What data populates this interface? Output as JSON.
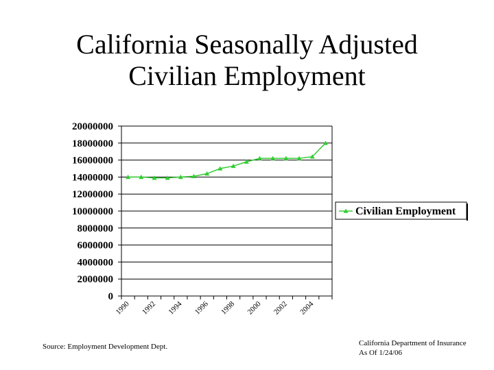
{
  "title_lines": [
    "California Seasonally Adjusted",
    "Civilian Employment"
  ],
  "source_note": "Source: Employment Development Dept.",
  "footer": {
    "org": "California Department of Insurance",
    "date": "As Of 1/24/06"
  },
  "colors": {
    "series": "#33cc33",
    "axis": "#000000",
    "grid": "#000000"
  },
  "chart_data": {
    "type": "line",
    "title": "",
    "xlabel": "",
    "ylabel": "",
    "ylim": [
      0,
      20000000
    ],
    "y_ticks": [
      "0",
      "2000000",
      "4000000",
      "6000000",
      "8000000",
      "10000000",
      "12000000",
      "14000000",
      "16000000",
      "18000000",
      "20000000"
    ],
    "x": [
      1990,
      1991,
      1992,
      1993,
      1994,
      1995,
      1996,
      1997,
      1998,
      1999,
      2000,
      2001,
      2002,
      2003,
      2004,
      2005
    ],
    "x_tick_labels": [
      "1990",
      "1992",
      "1994",
      "1996",
      "1998",
      "2000",
      "2002",
      "2004"
    ],
    "grid": "horizontal",
    "legend_position": "right",
    "series": [
      {
        "name": "Civilian Employment",
        "marker": "triangle",
        "values": [
          14000000,
          14000000,
          13900000,
          13900000,
          14000000,
          14100000,
          14400000,
          15000000,
          15300000,
          15800000,
          16200000,
          16200000,
          16200000,
          16200000,
          16400000,
          18000000
        ]
      }
    ]
  }
}
